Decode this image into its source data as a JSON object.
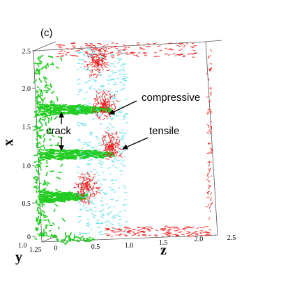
{
  "figure": {
    "panel_label": "(c)",
    "annotations": {
      "compressive": "compressive",
      "tensile": "tensile",
      "crack": "crack"
    },
    "axes": {
      "x": {
        "label": "x",
        "ticks": [
          "0",
          "0.5",
          "1.0",
          "1.5",
          "2.0",
          "2.5"
        ]
      },
      "z": {
        "label": "z",
        "ticks": [
          "0",
          "0.5",
          "1.0",
          "1.5",
          "2.0",
          "2.5"
        ]
      },
      "y": {
        "label": "y",
        "ticks": [
          "1.0",
          "1.25"
        ]
      }
    },
    "colors": {
      "crack_vectors": "#22cc22",
      "tensile_vectors": "#ee2222",
      "compressive_vectors": "#55dde6",
      "frame": "#555555"
    }
  }
}
